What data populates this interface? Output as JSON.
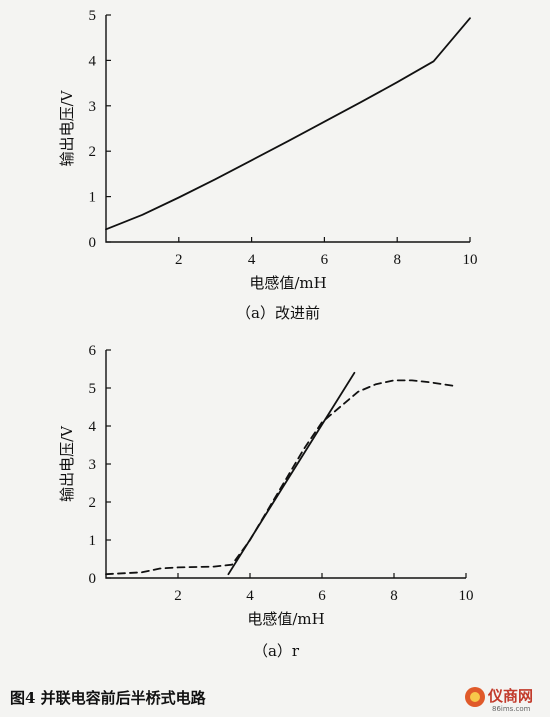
{
  "chart_data": [
    {
      "type": "line",
      "title": "",
      "caption": "（a）改进前",
      "xlabel": "电感值/mH",
      "ylabel": "输出电压/V",
      "xlim": [
        0,
        10
      ],
      "ylim": [
        0,
        5
      ],
      "xticks": [
        2,
        4,
        6,
        8,
        10
      ],
      "yticks": [
        0,
        1,
        2,
        3,
        4,
        5
      ],
      "grid": false,
      "series": [
        {
          "style": "solid",
          "x": [
            0,
            1,
            2,
            3,
            4,
            5,
            6,
            7,
            8,
            9,
            10
          ],
          "y": [
            0.28,
            0.6,
            0.98,
            1.38,
            1.8,
            2.22,
            2.65,
            3.08,
            3.52,
            3.98,
            4.93
          ]
        }
      ]
    },
    {
      "type": "line",
      "title": "",
      "caption": "（a）r",
      "xlabel": "电感值/mH",
      "ylabel": "输出电压/V",
      "xlim": [
        0,
        10
      ],
      "ylim": [
        0,
        6
      ],
      "xticks": [
        2,
        4,
        6,
        8,
        10
      ],
      "yticks": [
        0,
        1,
        2,
        3,
        4,
        5,
        6
      ],
      "grid": false,
      "series": [
        {
          "style": "solid",
          "x": [
            3.4,
            6.9
          ],
          "y": [
            0.1,
            5.4
          ]
        },
        {
          "style": "dashed",
          "x": [
            0,
            1,
            1.5,
            2,
            3,
            3.5,
            4,
            4.5,
            5,
            5.5,
            6,
            6.5,
            7,
            7.5,
            8,
            8.5,
            9,
            9.7
          ],
          "y": [
            0.1,
            0.15,
            0.25,
            0.28,
            0.3,
            0.35,
            1.0,
            1.8,
            2.6,
            3.4,
            4.1,
            4.5,
            4.9,
            5.1,
            5.2,
            5.2,
            5.15,
            5.05
          ]
        }
      ]
    }
  ],
  "figure_caption": "图4   并联电容前后半桥式电路",
  "watermark": {
    "text": "仪商网",
    "url": "86ims.com"
  },
  "colors": {
    "ink": "#111111",
    "background": "#f4f4f2",
    "watermark": "#c23a2b"
  }
}
